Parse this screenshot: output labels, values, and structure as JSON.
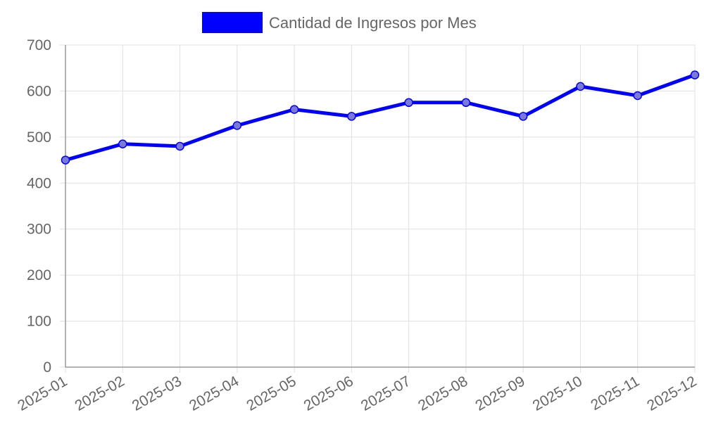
{
  "chart_data": {
    "type": "line",
    "legend_position": "top",
    "grid": true,
    "categories": [
      "2025-01",
      "2025-02",
      "2025-03",
      "2025-04",
      "2025-05",
      "2025-06",
      "2025-07",
      "2025-08",
      "2025-09",
      "2025-10",
      "2025-11",
      "2025-12"
    ],
    "series": [
      {
        "name": "Cantidad de Ingresos por Mes",
        "color": "#0000ff",
        "point_fill": "#7b7bd6",
        "values": [
          450,
          485,
          480,
          525,
          560,
          545,
          575,
          575,
          545,
          610,
          590,
          635
        ]
      }
    ],
    "ylim": [
      0,
      700
    ],
    "yticks": [
      0,
      100,
      200,
      300,
      400,
      500,
      600,
      700
    ],
    "ytick_labels": [
      "0",
      "100",
      "200",
      "300",
      "400",
      "500",
      "600",
      "700"
    ],
    "xlabel": "",
    "ylabel": "",
    "title": ""
  }
}
